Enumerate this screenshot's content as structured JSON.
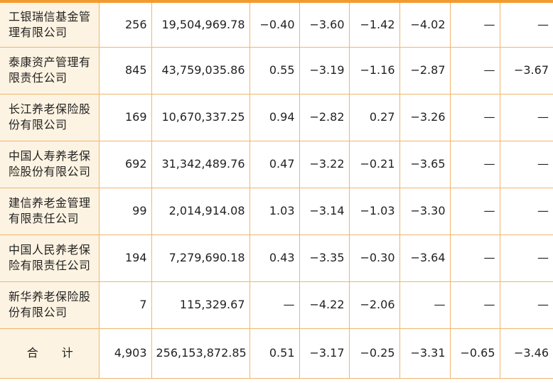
{
  "rows": [
    {
      "name": "工银瑞信基金管理有限公司",
      "c1": "256",
      "c2": "19,504,969.78",
      "c3": "−0.40",
      "c4": "−3.60",
      "c5": "−1.42",
      "c6": "−4.02",
      "c7": "—",
      "c8": "—"
    },
    {
      "name": "泰康资产管理有限责任公司",
      "c1": "845",
      "c2": "43,759,035.86",
      "c3": "0.55",
      "c4": "−3.19",
      "c5": "−1.16",
      "c6": "−2.87",
      "c7": "—",
      "c8": "−3.67"
    },
    {
      "name": "长江养老保险股份有限公司",
      "c1": "169",
      "c2": "10,670,337.25",
      "c3": "0.94",
      "c4": "−2.82",
      "c5": "0.27",
      "c6": "−3.26",
      "c7": "—",
      "c8": "—"
    },
    {
      "name": "中国人寿养老保险股份有限公司",
      "c1": "692",
      "c2": "31,342,489.76",
      "c3": "0.47",
      "c4": "−3.22",
      "c5": "−0.21",
      "c6": "−3.65",
      "c7": "—",
      "c8": "—"
    },
    {
      "name": "建信养老金管理有限责任公司",
      "c1": "99",
      "c2": "2,014,914.08",
      "c3": "1.03",
      "c4": "−3.14",
      "c5": "−1.03",
      "c6": "−3.30",
      "c7": "—",
      "c8": "—"
    },
    {
      "name": "中国人民养老保险有限责任公司",
      "c1": "194",
      "c2": "7,279,690.18",
      "c3": "0.43",
      "c4": "−3.35",
      "c5": "−0.30",
      "c6": "−3.64",
      "c7": "—",
      "c8": "—"
    },
    {
      "name": "新华养老保险股份有限公司",
      "c1": "7",
      "c2": "115,329.67",
      "c3": "—",
      "c4": "−4.22",
      "c5": "−2.06",
      "c6": "—",
      "c7": "—",
      "c8": "—"
    }
  ],
  "total": {
    "name": "合 计",
    "c1": "4,903",
    "c2": "256,153,872.85",
    "c3": "0.51",
    "c4": "−3.17",
    "c5": "−0.25",
    "c6": "−3.31",
    "c7": "−0.65",
    "c8": "−3.46"
  },
  "colors": {
    "border": "#f0b56b",
    "accent": "#f39a2e",
    "name_bg": "#fdf3e2"
  }
}
